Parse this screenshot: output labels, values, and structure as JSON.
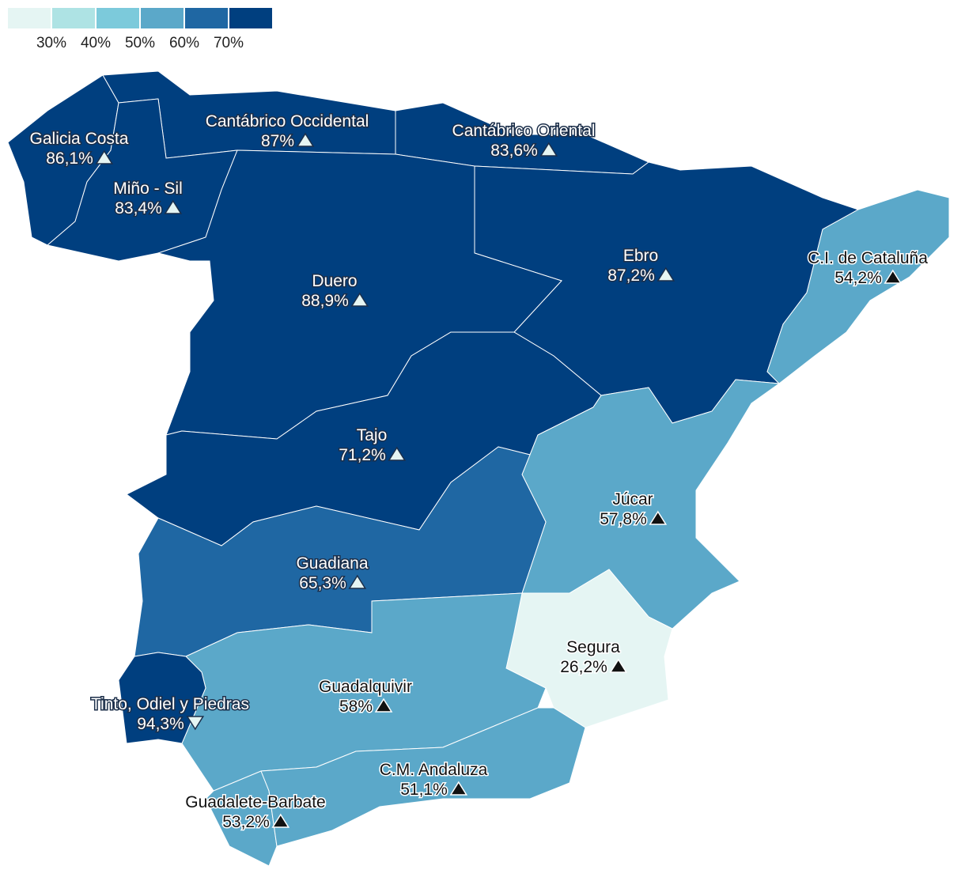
{
  "legend": {
    "colors": [
      "#e5f5f3",
      "#aee3e4",
      "#7ccadb",
      "#5ba8c9",
      "#1f67a3",
      "#003f7f"
    ],
    "ticks": [
      {
        "value": 30,
        "label": "30%"
      },
      {
        "value": 40,
        "label": "40%"
      },
      {
        "value": 50,
        "label": "50%"
      },
      {
        "value": 60,
        "label": "60%"
      },
      {
        "value": 70,
        "label": "70%"
      }
    ]
  },
  "regions": [
    {
      "name": "Galicia Costa",
      "value": 86.1,
      "value_label": "86,1%",
      "trend": "up"
    },
    {
      "name": "Cantábrico Occidental",
      "value": 87,
      "value_label": "87%",
      "trend": "up"
    },
    {
      "name": "Cantábrico Oriental",
      "value": 83.6,
      "value_label": "83,6%",
      "trend": "up"
    },
    {
      "name": "Miño - Sil",
      "value": 83.4,
      "value_label": "83,4%",
      "trend": "up"
    },
    {
      "name": "Ebro",
      "value": 87.2,
      "value_label": "87,2%",
      "trend": "up"
    },
    {
      "name": "C.I. de Cataluña",
      "value": 54.2,
      "value_label": "54,2%",
      "trend": "up"
    },
    {
      "name": "Duero",
      "value": 88.9,
      "value_label": "88,9%",
      "trend": "up"
    },
    {
      "name": "Tajo",
      "value": 71.2,
      "value_label": "71,2%",
      "trend": "up"
    },
    {
      "name": "Júcar",
      "value": 57.8,
      "value_label": "57,8%",
      "trend": "up"
    },
    {
      "name": "Guadiana",
      "value": 65.3,
      "value_label": "65,3%",
      "trend": "up"
    },
    {
      "name": "Segura",
      "value": 26.2,
      "value_label": "26,2%",
      "trend": "up"
    },
    {
      "name": "Guadalquivir",
      "value": 58,
      "value_label": "58%",
      "trend": "up"
    },
    {
      "name": "Tinto, Odiel y Piedras",
      "value": 94.3,
      "value_label": "94,3%",
      "trend": "down"
    },
    {
      "name": "Guadalete-Barbate",
      "value": 53.2,
      "value_label": "53,2%",
      "trend": "up"
    },
    {
      "name": "C.M. Andaluza",
      "value": 51.1,
      "value_label": "51,1%",
      "trend": "up"
    }
  ]
}
